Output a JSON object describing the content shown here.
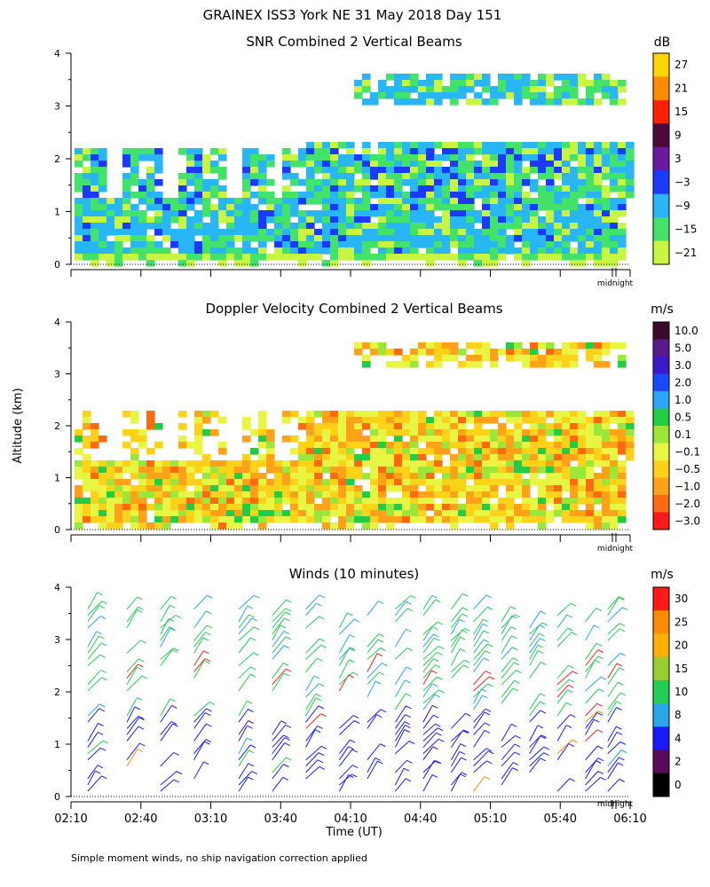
{
  "figure": {
    "title": "GRAINEX ISS3 York NE  31 May 2018 Day 151",
    "ylabel": "Altitude (km)",
    "xlabel": "Time (UT)",
    "footnote": "Simple moment winds, no ship navigation correction applied",
    "midnight_label": "midnight"
  },
  "chart_data": [
    {
      "type": "heatmap",
      "title": "SNR Combined 2 Vertical Beams",
      "yticks": [
        "0",
        "1",
        "2",
        "3",
        "4"
      ],
      "ylim": [
        0,
        4
      ],
      "colorbar": {
        "unit": "dB",
        "labels": [
          "27",
          "21",
          "15",
          "9",
          "3",
          "−3",
          "−9",
          "−15",
          "−21"
        ],
        "colors": [
          "#ffd700",
          "#ff8c00",
          "#ff2200",
          "#4a0a3a",
          "#6a1aa0",
          "#1a3aff",
          "#29b6f6",
          "#43e26a",
          "#c8f542"
        ]
      }
    },
    {
      "type": "heatmap",
      "title": "Doppler Velocity Combined 2 Vertical Beams",
      "yticks": [
        "0",
        "1",
        "2",
        "3",
        "4"
      ],
      "ylim": [
        0,
        4
      ],
      "colorbar": {
        "unit": "m/s",
        "labels": [
          "10.0",
          "5.0",
          "3.0",
          "2.0",
          "1.0",
          "0.5",
          "0.1",
          "−0.1",
          "−0.5",
          "−1.0",
          "−2.0",
          "−3.0"
        ],
        "colors": [
          "#3a0a2a",
          "#5a1a8a",
          "#3a1acc",
          "#1a4aff",
          "#29a6f6",
          "#22cc44",
          "#9ae63a",
          "#e8f542",
          "#ffd21a",
          "#ffa21a",
          "#ff6a10",
          "#ff1a1a"
        ]
      }
    },
    {
      "type": "scatter",
      "title": "Winds (10 minutes)",
      "yticks": [
        "0",
        "1",
        "2",
        "3",
        "4"
      ],
      "ylim": [
        0,
        4
      ],
      "xticks": [
        "02:10",
        "02:40",
        "03:10",
        "03:40",
        "04:10",
        "04:40",
        "05:10",
        "05:40",
        "06:10"
      ],
      "colorbar": {
        "unit": "m/s",
        "labels": [
          "30",
          "25",
          "20",
          "15",
          "10",
          "8",
          "4",
          "2",
          "0"
        ],
        "colors": [
          "#ff1a1a",
          "#ff8c00",
          "#ffb000",
          "#9acd32",
          "#22cc55",
          "#29a6e6",
          "#1a1aff",
          "#5a0a5a",
          "#000000"
        ]
      }
    }
  ]
}
